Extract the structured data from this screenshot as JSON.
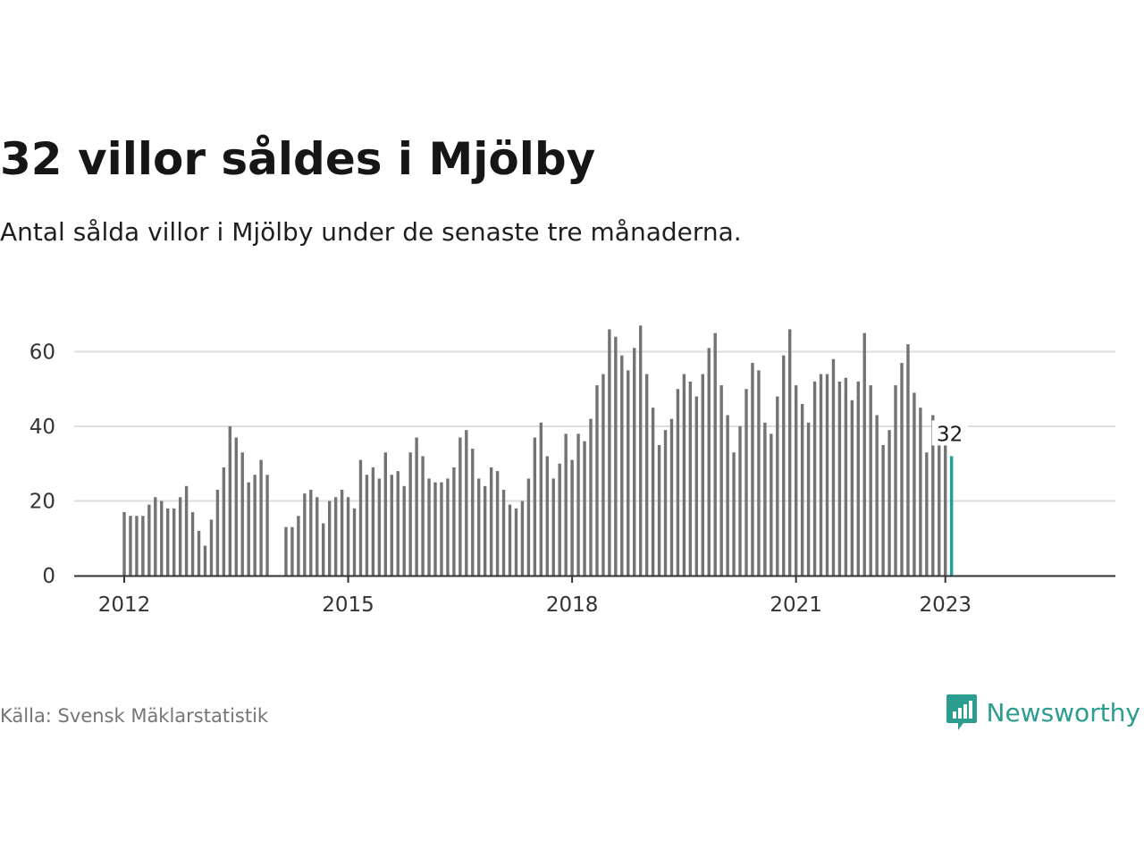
{
  "title": "32 villor såldes i Mjölby",
  "subtitle": "Antal sålda villor i Mjölby under de senaste tre månaderna.",
  "source": "Källa: Svensk Mäklarstatistik",
  "brand": {
    "name": "Newsworthy",
    "icon": "newsworthy-logo-icon",
    "color": "#2a9d8f"
  },
  "colors": {
    "bar": "#737373",
    "highlight": "#1aa39a",
    "grid": "#dedede",
    "axis": "#333333"
  },
  "chart_data": {
    "type": "bar",
    "x_start": "2012-01",
    "x_end": "2023-01",
    "x_ticks": [
      "2012",
      "2015",
      "2018",
      "2021",
      "2023"
    ],
    "ylim": [
      0,
      70
    ],
    "y_ticks": [
      0,
      20,
      40,
      60
    ],
    "grid": true,
    "series": [
      {
        "values": [
          17,
          16,
          16,
          16,
          19,
          21,
          20,
          18,
          18,
          21,
          24,
          17,
          12,
          8,
          15,
          23,
          29,
          40,
          37,
          33,
          25,
          27,
          31,
          27,
          null,
          null,
          13,
          13,
          16,
          22,
          23,
          21,
          14,
          20,
          21,
          23,
          21,
          18,
          31,
          27,
          29,
          26,
          33,
          27,
          28,
          24,
          33,
          37,
          32,
          26,
          25,
          25,
          26,
          29,
          37,
          39,
          34,
          26,
          24,
          29,
          28,
          23,
          19,
          18,
          20,
          26,
          37,
          41,
          32,
          26,
          30,
          38,
          31,
          38,
          36,
          42,
          51,
          54,
          66,
          64,
          59,
          55,
          61,
          67,
          54,
          45,
          35,
          39,
          42,
          50,
          54,
          52,
          48,
          54,
          61,
          65,
          51,
          43,
          33,
          40,
          50,
          57,
          55,
          41,
          38,
          48,
          59,
          66,
          51,
          46,
          41,
          52,
          54,
          54,
          58,
          52,
          53,
          47,
          52,
          65,
          51,
          43,
          35,
          39,
          51,
          57,
          62,
          49,
          45,
          33,
          43,
          35,
          35,
          32
        ]
      }
    ],
    "highlight_last": true,
    "annotation": "32"
  }
}
